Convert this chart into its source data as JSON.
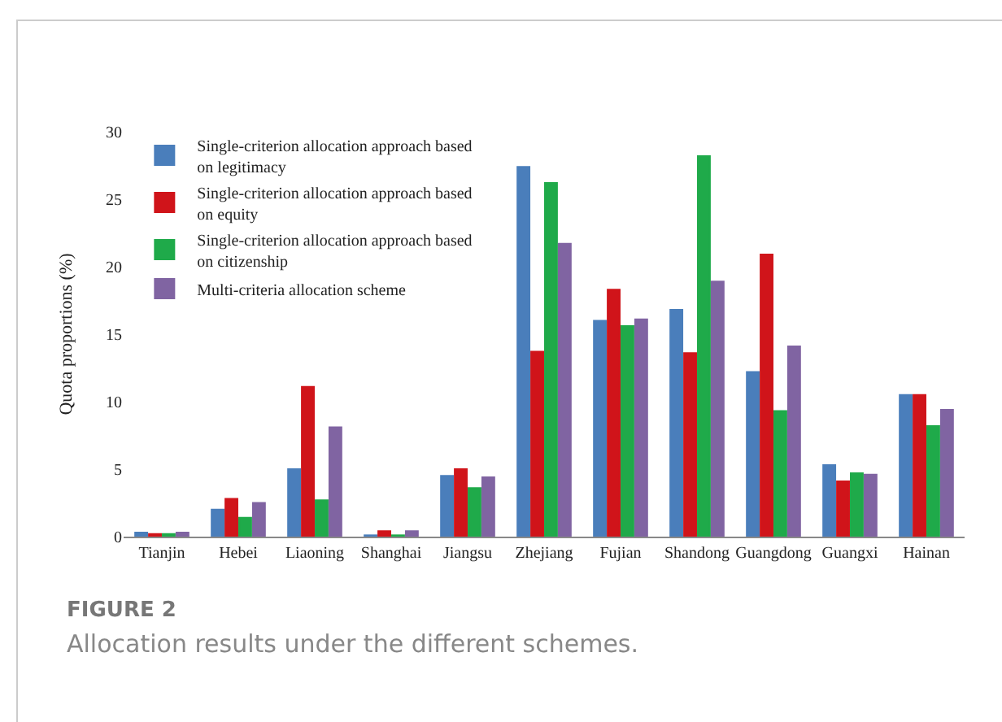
{
  "chart_data": {
    "type": "bar",
    "title": "FIGURE 2",
    "subtitle": "Allocation results under the different schemes.",
    "ylabel": "Quota proportions (%)",
    "categories": [
      "Tianjin",
      "Hebei",
      "Liaoning",
      "Shanghai",
      "Jiangsu",
      "Zhejiang",
      "Fujian",
      "Shandong",
      "Guangdong",
      "Guangxi",
      "Hainan"
    ],
    "series": [
      {
        "name": "Single-criterion allocation approach based on legitimacy",
        "color": "#4a7ebb",
        "values": [
          0.3,
          2.0,
          5.0,
          0.1,
          4.5,
          27.4,
          16.0,
          16.8,
          12.2,
          5.3,
          10.5
        ]
      },
      {
        "name": "Single-criterion allocation approach based on equity",
        "color": "#d0141a",
        "values": [
          0.2,
          2.8,
          11.1,
          0.4,
          5.0,
          13.7,
          18.3,
          13.6,
          20.9,
          4.1,
          10.5
        ]
      },
      {
        "name": "Single-criterion allocation approach based on citizenship",
        "color": "#1faa4a",
        "values": [
          0.2,
          1.4,
          2.7,
          0.1,
          3.6,
          26.2,
          15.6,
          28.2,
          9.3,
          4.7,
          8.2
        ]
      },
      {
        "name": "Multi-criteria allocation scheme",
        "color": "#8064a2",
        "values": [
          0.3,
          2.5,
          8.1,
          0.4,
          4.4,
          21.7,
          16.1,
          18.9,
          14.1,
          4.6,
          9.4
        ]
      }
    ],
    "ylim": [
      0,
      30
    ],
    "yticks": [
      0,
      5,
      10,
      15,
      20,
      25,
      30
    ],
    "grid": false,
    "legend": "top left"
  }
}
